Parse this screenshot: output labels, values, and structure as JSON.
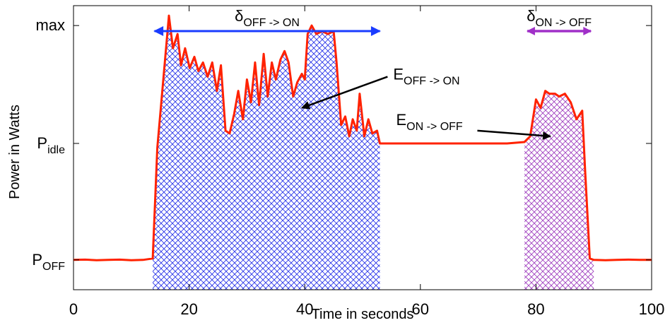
{
  "chart_data": {
    "type": "line",
    "xlabel": "Time in seconds",
    "ylabel": "Power in Watts",
    "xlim": [
      0,
      100
    ],
    "ylim": [
      0,
      1
    ],
    "grid": false,
    "x_ticks": [
      0,
      20,
      40,
      60,
      80,
      100
    ],
    "y_ticks": [
      {
        "value": 0.105,
        "base": "P",
        "sub": "OFF"
      },
      {
        "value": 0.515,
        "base": "P",
        "sub": "idle"
      },
      {
        "value": 0.93,
        "base": "max",
        "sub": ""
      }
    ],
    "colors": {
      "power_line": "#ff2200",
      "off_on_fill": "#2a35e8",
      "on_off_fill": "#a040c0",
      "off_on_arrow": "#1a3cff",
      "on_off_arrow": "#a030c8"
    },
    "series": [
      {
        "x": [
          0,
          2,
          4,
          6,
          8,
          10,
          12,
          13.7,
          14.5,
          15.8,
          16.5,
          17.2,
          18,
          18.6,
          19.3,
          20.1,
          20.9,
          21.6,
          22.4,
          23.2,
          24,
          24.8,
          25.5,
          26.3,
          27,
          27.8,
          28.5,
          29.3,
          30,
          30.7,
          31.4,
          32.1,
          32.9,
          33.6,
          34.3,
          35,
          35.8,
          36.5,
          37.2,
          38,
          38.7,
          39.5,
          40,
          40.5,
          41.2,
          42,
          43,
          44,
          45,
          45.5,
          46.3,
          47,
          47.7,
          48.3,
          49,
          49.5,
          50.3,
          51,
          51.7,
          52.5,
          53,
          55,
          60,
          65,
          70,
          75,
          78,
          79,
          80,
          80.8,
          81.6,
          82.3,
          83.3,
          84,
          85,
          86,
          87,
          88,
          88.5,
          89.3,
          90,
          92,
          94,
          96,
          98,
          100
        ],
        "y": [
          0.105,
          0.106,
          0.104,
          0.105,
          0.106,
          0.104,
          0.105,
          0.11,
          0.5,
          0.8,
          0.965,
          0.85,
          0.9,
          0.79,
          0.85,
          0.78,
          0.82,
          0.77,
          0.8,
          0.75,
          0.8,
          0.7,
          0.79,
          0.56,
          0.55,
          0.62,
          0.7,
          0.6,
          0.74,
          0.66,
          0.8,
          0.65,
          0.83,
          0.68,
          0.8,
          0.74,
          0.81,
          0.84,
          0.8,
          0.68,
          0.73,
          0.76,
          0.74,
          0.9,
          0.93,
          0.9,
          0.91,
          0.9,
          0.91,
          0.8,
          0.58,
          0.61,
          0.54,
          0.6,
          0.56,
          0.69,
          0.54,
          0.6,
          0.55,
          0.56,
          0.515,
          0.515,
          0.515,
          0.515,
          0.515,
          0.515,
          0.52,
          0.54,
          0.67,
          0.64,
          0.7,
          0.69,
          0.69,
          0.68,
          0.69,
          0.66,
          0.6,
          0.63,
          0.42,
          0.11,
          0.105,
          0.104,
          0.105,
          0.106,
          0.105,
          0.105
        ],
        "fill_regions": [
          {
            "x_from": 13.7,
            "x_to": 53.0
          },
          {
            "x_from": 78.0,
            "x_to": 90.0
          }
        ]
      }
    ],
    "annotations": [
      {
        "type": "double-arrow",
        "base": "δ",
        "sub": "OFF -> ON",
        "x_from": 14,
        "x_to": 53,
        "y": 0.93
      },
      {
        "type": "double-arrow",
        "base": "δ",
        "sub": "ON -> OFF",
        "x_from": 78.5,
        "x_to": 89.5,
        "y": 0.93
      },
      {
        "type": "callout",
        "base": "E",
        "sub": "OFF -> ON",
        "label_x": 55.3,
        "label_y": 0.74,
        "target_x": 39.5,
        "target_y": 0.64
      },
      {
        "type": "callout",
        "base": "E",
        "sub": "ON -> OFF",
        "label_x": 55.8,
        "label_y": 0.58,
        "target_x": 82.5,
        "target_y": 0.54
      }
    ]
  }
}
